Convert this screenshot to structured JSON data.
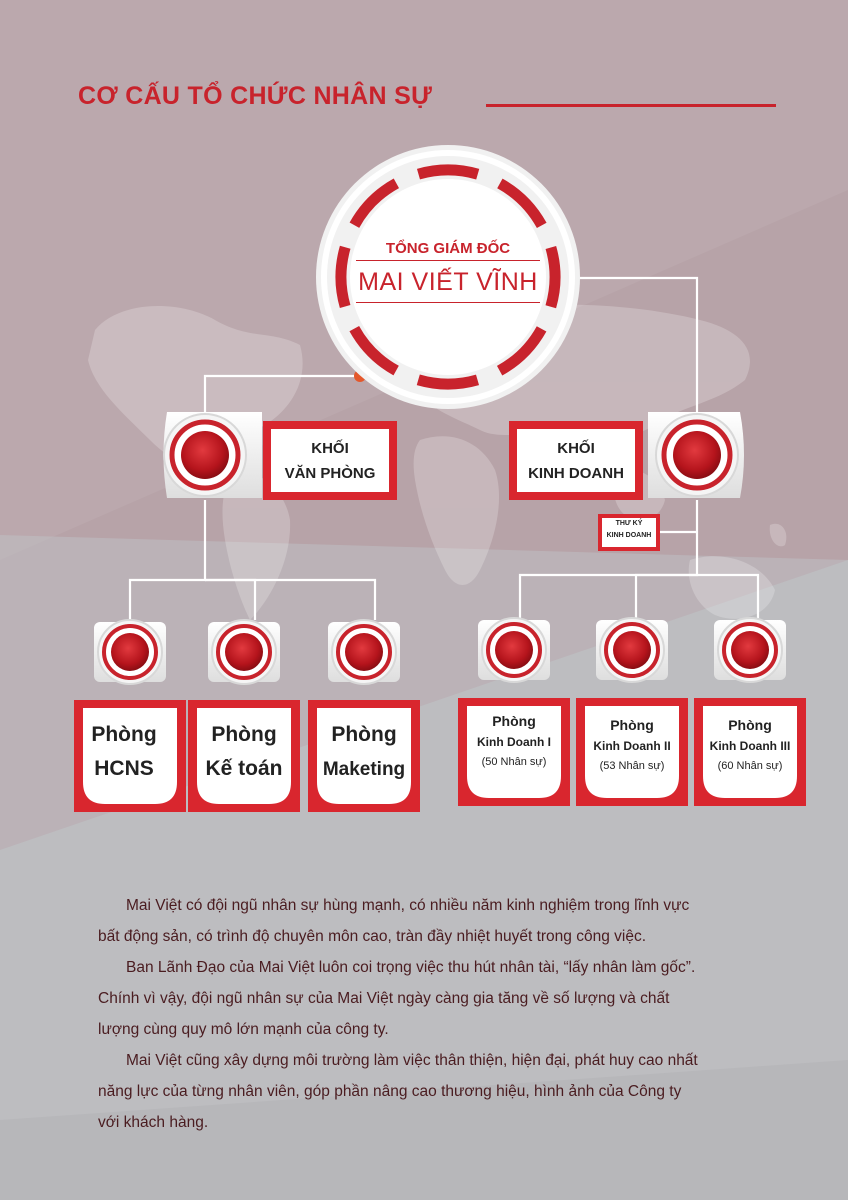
{
  "header": {
    "title": "CƠ CẤU TỔ CHỨC NHÂN SỰ"
  },
  "ceo": {
    "title": "TỔNG GIÁM ĐỐC",
    "name": "MAI VIẾT VĨNH"
  },
  "blocks": {
    "office": {
      "line1": "KHỐI",
      "line2": "VĂN PHÒNG"
    },
    "business": {
      "line1": "KHỐI",
      "line2": "KINH DOANH"
    },
    "secretary": {
      "line1": "THƯ KÝ",
      "line2": "KINH DOANH"
    }
  },
  "departments": [
    {
      "line1": "Phòng",
      "line2": "HCNS"
    },
    {
      "line1": "Phòng",
      "line2": "Kế toán"
    },
    {
      "line1": "Phòng",
      "line2": "Maketing"
    },
    {
      "line1": "Phòng",
      "line2": "Kinh Doanh I",
      "count": "(50 Nhân sự)"
    },
    {
      "line1": "Phòng",
      "line2": "Kinh Doanh II",
      "count": "(53 Nhân sự)"
    },
    {
      "line1": "Phòng",
      "line2": "Kinh Doanh III",
      "count": "(60 Nhân sự)"
    }
  ],
  "body": {
    "p1a": "Mai Việt có đội ngũ nhân sự hùng mạnh, có nhiều năm kinh nghiệm trong lĩnh vực",
    "p1b": "bất động sản, có trình độ chuyên môn cao, tràn đầy nhiệt huyết trong công việc.",
    "p2a": "Ban Lãnh Đạo của Mai Việt luôn coi trọng việc thu hút nhân tài, “lấy nhân làm gốc”.",
    "p2b": "Chính vì vậy, đội ngũ nhân sự của Mai Việt ngày càng gia tăng về số lượng và chất",
    "p2c": "lượng cùng quy mô lớn mạnh của công ty.",
    "p3a": "Mai Việt cũng xây dựng môi trường làm việc thân thiện, hiện đại, phát huy cao nhất",
    "p3b": "năng lực của từng nhân viên, góp phần nâng cao thương hiệu, hình ảnh của Công ty",
    "p3c": "với khách hàng."
  },
  "colors": {
    "accent": "#c8232c",
    "background": "#b7a3a8",
    "grey": "#bcbcbf"
  }
}
